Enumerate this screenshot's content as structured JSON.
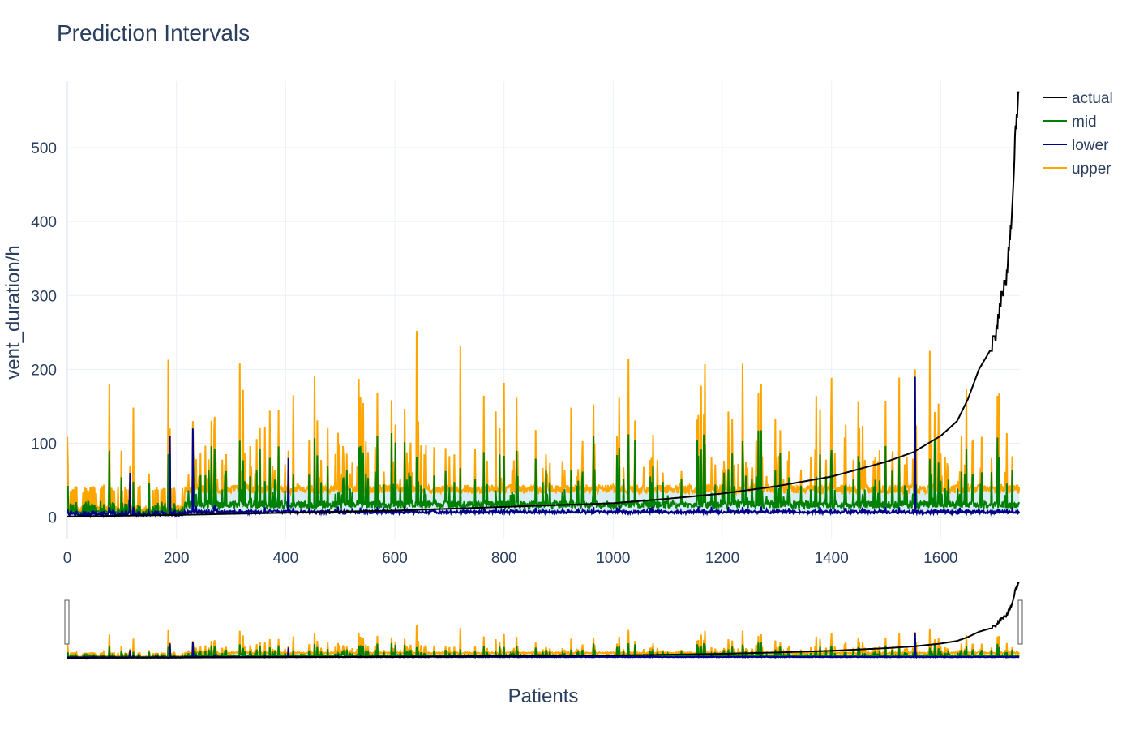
{
  "chart_data": {
    "type": "line",
    "title": "Prediction Intervals",
    "xlabel": "Patients",
    "ylabel": "vent_duration/h",
    "xlim": [
      0,
      1745
    ],
    "ylim": [
      -30,
      590
    ],
    "x_ticks": [
      0,
      200,
      400,
      600,
      800,
      1000,
      1200,
      1400,
      1600
    ],
    "y_ticks": [
      0,
      100,
      200,
      300,
      400,
      500
    ],
    "x_tick_labels": [
      "0",
      "200",
      "400",
      "600",
      "800",
      "1000",
      "1200",
      "1400",
      "1600"
    ],
    "y_tick_labels": [
      "0",
      "100",
      "200",
      "300",
      "400",
      "500"
    ],
    "grid": true,
    "legend_position": "top-right",
    "range_slider": true,
    "n_points": 1745,
    "series": [
      {
        "name": "actual",
        "color": "#000000",
        "role": "sorted actual ventilation duration",
        "anchors": [
          [
            0,
            1
          ],
          [
            200,
            3
          ],
          [
            400,
            6
          ],
          [
            600,
            9
          ],
          [
            800,
            14
          ],
          [
            1000,
            19
          ],
          [
            1100,
            25
          ],
          [
            1200,
            32
          ],
          [
            1300,
            42
          ],
          [
            1400,
            55
          ],
          [
            1500,
            75
          ],
          [
            1550,
            88
          ],
          [
            1600,
            110
          ],
          [
            1630,
            130
          ],
          [
            1650,
            160
          ],
          [
            1670,
            200
          ],
          [
            1690,
            225
          ],
          [
            1700,
            240
          ],
          [
            1710,
            290
          ],
          [
            1720,
            320
          ],
          [
            1730,
            405
          ],
          [
            1737,
            520
          ],
          [
            1742,
            565
          ]
        ]
      },
      {
        "name": "mid",
        "color": "#008000",
        "role": "median prediction",
        "baseline": 12,
        "typical_peak": 110,
        "max": 130
      },
      {
        "name": "lower",
        "color": "#00008b",
        "role": "lower bound",
        "baseline": 5,
        "max": 190,
        "notable_spikes": [
          [
            115,
            60
          ],
          [
            188,
            110
          ],
          [
            230,
            120
          ],
          [
            405,
            80
          ],
          [
            1553,
            190
          ]
        ]
      },
      {
        "name": "upper",
        "color": "#ffa500",
        "role": "upper bound",
        "baseline": 40,
        "typical_peak": 200,
        "max": 252,
        "notable_spikes": [
          [
            185,
            213
          ],
          [
            640,
            252
          ],
          [
            720,
            232
          ],
          [
            1580,
            225
          ]
        ]
      }
    ]
  }
}
